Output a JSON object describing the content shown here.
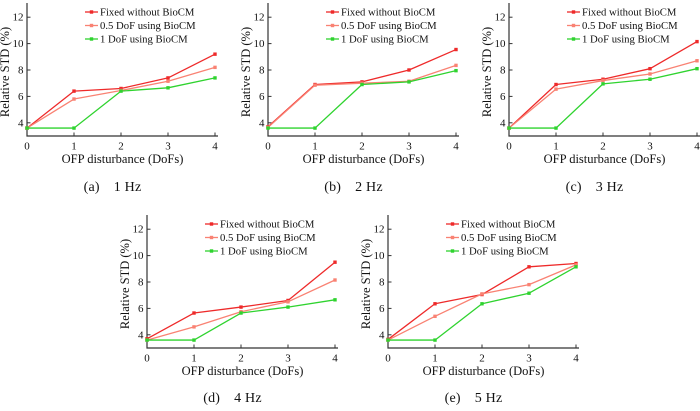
{
  "page": {
    "background": "#ffffff"
  },
  "colors": {
    "fixed": "#ee2a2a",
    "half_dof": "#f98273",
    "one_dof": "#2fd32f",
    "axis": "#333333",
    "text": "#111111"
  },
  "axes": {
    "xlabel": "OFP disturbance (DoFs)",
    "ylabel": "Relative STD (%)",
    "xticks": [
      0,
      1,
      2,
      3,
      4
    ],
    "yticks": [
      4,
      6,
      8,
      10,
      12
    ],
    "xlim": [
      0,
      4
    ],
    "ylim": [
      3,
      13
    ],
    "grid": false,
    "legend_position": "top-right-inside"
  },
  "chart_data": [
    {
      "id": "a",
      "type": "line",
      "caption_label": "(a)",
      "caption_freq": "1 Hz",
      "x": [
        0,
        1,
        2,
        3,
        4
      ],
      "series": [
        {
          "name": "Fixed without BioCM",
          "color": "#ee2a2a",
          "values": [
            3.6,
            6.4,
            6.6,
            7.4,
            9.2
          ]
        },
        {
          "name": "0.5 DoF using BioCM",
          "color": "#f98273",
          "values": [
            3.6,
            5.8,
            6.45,
            7.15,
            8.2
          ]
        },
        {
          "name": "1 DoF using BioCM",
          "color": "#2fd32f",
          "values": [
            3.6,
            3.6,
            6.4,
            6.65,
            7.4
          ]
        }
      ]
    },
    {
      "id": "b",
      "type": "line",
      "caption_label": "(b)",
      "caption_freq": "2 Hz",
      "x": [
        0,
        1,
        2,
        3,
        4
      ],
      "series": [
        {
          "name": "Fixed without BioCM",
          "color": "#ee2a2a",
          "values": [
            3.7,
            6.9,
            7.1,
            8.0,
            9.55
          ]
        },
        {
          "name": "0.5 DoF using BioCM",
          "color": "#f98273",
          "values": [
            3.65,
            6.85,
            7.0,
            7.15,
            8.35
          ]
        },
        {
          "name": "1 DoF using BioCM",
          "color": "#2fd32f",
          "values": [
            3.6,
            3.6,
            6.9,
            7.1,
            7.95
          ]
        }
      ]
    },
    {
      "id": "c",
      "type": "line",
      "caption_label": "(c)",
      "caption_freq": "3 Hz",
      "x": [
        0,
        1,
        2,
        3,
        4
      ],
      "series": [
        {
          "name": "Fixed without BioCM",
          "color": "#ee2a2a",
          "values": [
            3.6,
            6.9,
            7.3,
            8.1,
            10.15
          ]
        },
        {
          "name": "0.5 DoF using BioCM",
          "color": "#f98273",
          "values": [
            3.6,
            6.55,
            7.2,
            7.7,
            8.7
          ]
        },
        {
          "name": "1 DoF using BioCM",
          "color": "#2fd32f",
          "values": [
            3.6,
            3.6,
            6.95,
            7.3,
            8.1
          ]
        }
      ]
    },
    {
      "id": "d",
      "type": "line",
      "caption_label": "(d)",
      "caption_freq": "4 Hz",
      "x": [
        0,
        1,
        2,
        3,
        4
      ],
      "series": [
        {
          "name": "Fixed without BioCM",
          "color": "#ee2a2a",
          "values": [
            3.7,
            5.65,
            6.1,
            6.6,
            9.5
          ]
        },
        {
          "name": "0.5 DoF using BioCM",
          "color": "#f98273",
          "values": [
            3.6,
            4.6,
            5.75,
            6.5,
            8.15
          ]
        },
        {
          "name": "1 DoF using BioCM",
          "color": "#2fd32f",
          "values": [
            3.6,
            3.6,
            5.65,
            6.1,
            6.65
          ]
        }
      ]
    },
    {
      "id": "e",
      "type": "line",
      "caption_label": "(e)",
      "caption_freq": "5 Hz",
      "x": [
        0,
        1,
        2,
        3,
        4
      ],
      "series": [
        {
          "name": "Fixed without BioCM",
          "color": "#ee2a2a",
          "values": [
            3.65,
            6.35,
            7.05,
            9.15,
            9.4
          ]
        },
        {
          "name": "0.5 DoF using BioCM",
          "color": "#f98273",
          "values": [
            3.6,
            5.4,
            7.1,
            7.8,
            9.3
          ]
        },
        {
          "name": "1 DoF using BioCM",
          "color": "#2fd32f",
          "values": [
            3.6,
            3.6,
            6.35,
            7.15,
            9.15
          ]
        }
      ]
    }
  ]
}
